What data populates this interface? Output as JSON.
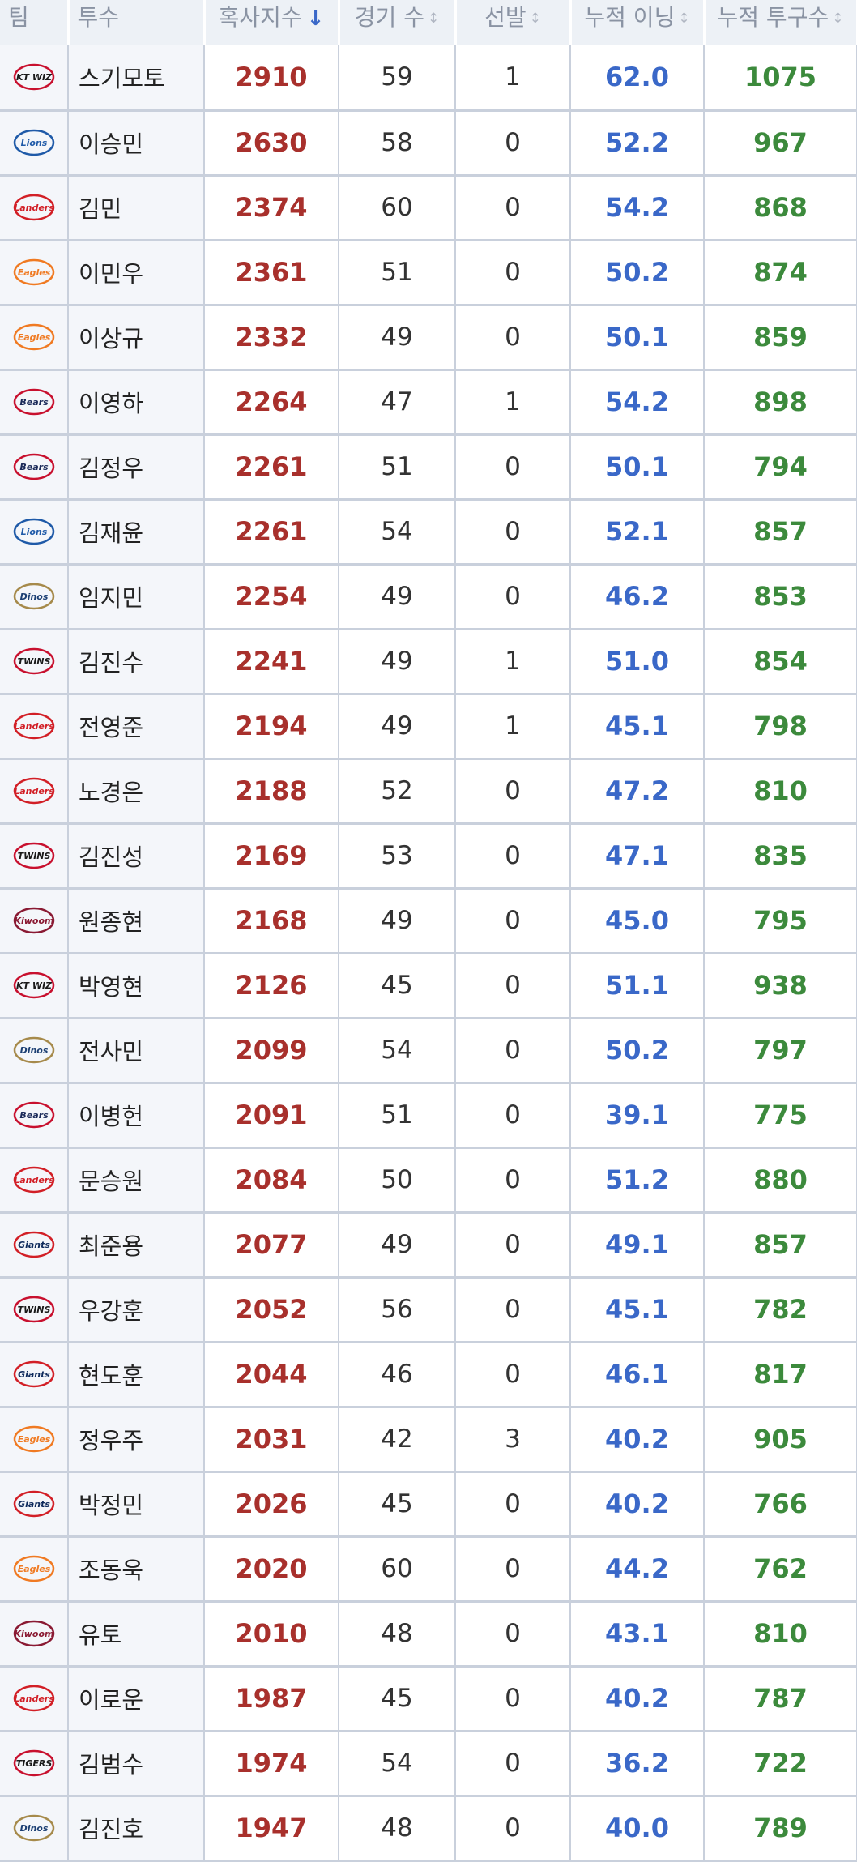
{
  "headers": {
    "team": "팀",
    "pitcher": "투수",
    "fatigue": "혹사지수",
    "games": "경기 수",
    "starts": "선발",
    "innings": "누적 이닝",
    "pitches": "누적 투구수"
  },
  "sort": {
    "column": "fatigue",
    "direction": "descending"
  },
  "team_logos": {
    "wiz": {
      "text": "KT WIZ",
      "color": "#1a1a1a",
      "accent": "#c8102e"
    },
    "lions": {
      "text": "Lions",
      "color": "#1f5aa8",
      "accent": "#1f5aa8"
    },
    "landers": {
      "text": "Landers",
      "color": "#d21f26",
      "accent": "#d21f26"
    },
    "eagles": {
      "text": "Eagles",
      "color": "#f07a22",
      "accent": "#f07a22"
    },
    "bears": {
      "text": "Bears",
      "color": "#1b2a59",
      "accent": "#c8102e"
    },
    "dinos": {
      "text": "Dinos",
      "color": "#1c3f73",
      "accent": "#a68a4b"
    },
    "twins": {
      "text": "TWINS",
      "color": "#1a1a1a",
      "accent": "#c8102e"
    },
    "kiwoom": {
      "text": "Kiwoom",
      "color": "#8a1a33",
      "accent": "#8a1a33"
    },
    "giants": {
      "text": "Giants",
      "color": "#0e2a5c",
      "accent": "#d21f26"
    },
    "tigers": {
      "text": "TIGERS",
      "color": "#1a1a1a",
      "accent": "#c8102e"
    }
  },
  "rows": [
    {
      "team": "wiz",
      "pitcher": "스기모토",
      "fatigue": "2910",
      "games": "59",
      "starts": "1",
      "innings": "62.0",
      "pitches": "1075"
    },
    {
      "team": "lions",
      "pitcher": "이승민",
      "fatigue": "2630",
      "games": "58",
      "starts": "0",
      "innings": "52.2",
      "pitches": "967"
    },
    {
      "team": "landers",
      "pitcher": "김민",
      "fatigue": "2374",
      "games": "60",
      "starts": "0",
      "innings": "54.2",
      "pitches": "868"
    },
    {
      "team": "eagles",
      "pitcher": "이민우",
      "fatigue": "2361",
      "games": "51",
      "starts": "0",
      "innings": "50.2",
      "pitches": "874"
    },
    {
      "team": "eagles",
      "pitcher": "이상규",
      "fatigue": "2332",
      "games": "49",
      "starts": "0",
      "innings": "50.1",
      "pitches": "859"
    },
    {
      "team": "bears",
      "pitcher": "이영하",
      "fatigue": "2264",
      "games": "47",
      "starts": "1",
      "innings": "54.2",
      "pitches": "898"
    },
    {
      "team": "bears",
      "pitcher": "김정우",
      "fatigue": "2261",
      "games": "51",
      "starts": "0",
      "innings": "50.1",
      "pitches": "794"
    },
    {
      "team": "lions",
      "pitcher": "김재윤",
      "fatigue": "2261",
      "games": "54",
      "starts": "0",
      "innings": "52.1",
      "pitches": "857"
    },
    {
      "team": "dinos",
      "pitcher": "임지민",
      "fatigue": "2254",
      "games": "49",
      "starts": "0",
      "innings": "46.2",
      "pitches": "853"
    },
    {
      "team": "twins",
      "pitcher": "김진수",
      "fatigue": "2241",
      "games": "49",
      "starts": "1",
      "innings": "51.0",
      "pitches": "854"
    },
    {
      "team": "landers",
      "pitcher": "전영준",
      "fatigue": "2194",
      "games": "49",
      "starts": "1",
      "innings": "45.1",
      "pitches": "798"
    },
    {
      "team": "landers",
      "pitcher": "노경은",
      "fatigue": "2188",
      "games": "52",
      "starts": "0",
      "innings": "47.2",
      "pitches": "810"
    },
    {
      "team": "twins",
      "pitcher": "김진성",
      "fatigue": "2169",
      "games": "53",
      "starts": "0",
      "innings": "47.1",
      "pitches": "835"
    },
    {
      "team": "kiwoom",
      "pitcher": "원종현",
      "fatigue": "2168",
      "games": "49",
      "starts": "0",
      "innings": "45.0",
      "pitches": "795"
    },
    {
      "team": "wiz",
      "pitcher": "박영현",
      "fatigue": "2126",
      "games": "45",
      "starts": "0",
      "innings": "51.1",
      "pitches": "938"
    },
    {
      "team": "dinos",
      "pitcher": "전사민",
      "fatigue": "2099",
      "games": "54",
      "starts": "0",
      "innings": "50.2",
      "pitches": "797"
    },
    {
      "team": "bears",
      "pitcher": "이병헌",
      "fatigue": "2091",
      "games": "51",
      "starts": "0",
      "innings": "39.1",
      "pitches": "775"
    },
    {
      "team": "landers",
      "pitcher": "문승원",
      "fatigue": "2084",
      "games": "50",
      "starts": "0",
      "innings": "51.2",
      "pitches": "880"
    },
    {
      "team": "giants",
      "pitcher": "최준용",
      "fatigue": "2077",
      "games": "49",
      "starts": "0",
      "innings": "49.1",
      "pitches": "857"
    },
    {
      "team": "twins",
      "pitcher": "우강훈",
      "fatigue": "2052",
      "games": "56",
      "starts": "0",
      "innings": "45.1",
      "pitches": "782"
    },
    {
      "team": "giants",
      "pitcher": "현도훈",
      "fatigue": "2044",
      "games": "46",
      "starts": "0",
      "innings": "46.1",
      "pitches": "817"
    },
    {
      "team": "eagles",
      "pitcher": "정우주",
      "fatigue": "2031",
      "games": "42",
      "starts": "3",
      "innings": "40.2",
      "pitches": "905"
    },
    {
      "team": "giants",
      "pitcher": "박정민",
      "fatigue": "2026",
      "games": "45",
      "starts": "0",
      "innings": "40.2",
      "pitches": "766"
    },
    {
      "team": "eagles",
      "pitcher": "조동욱",
      "fatigue": "2020",
      "games": "60",
      "starts": "0",
      "innings": "44.2",
      "pitches": "762"
    },
    {
      "team": "kiwoom",
      "pitcher": "유토",
      "fatigue": "2010",
      "games": "48",
      "starts": "0",
      "innings": "43.1",
      "pitches": "810"
    },
    {
      "team": "landers",
      "pitcher": "이로운",
      "fatigue": "1987",
      "games": "45",
      "starts": "0",
      "innings": "40.2",
      "pitches": "787"
    },
    {
      "team": "tigers",
      "pitcher": "김범수",
      "fatigue": "1974",
      "games": "54",
      "starts": "0",
      "innings": "36.2",
      "pitches": "722"
    },
    {
      "team": "dinos",
      "pitcher": "김진호",
      "fatigue": "1947",
      "games": "48",
      "starts": "0",
      "innings": "40.0",
      "pitches": "789"
    }
  ]
}
